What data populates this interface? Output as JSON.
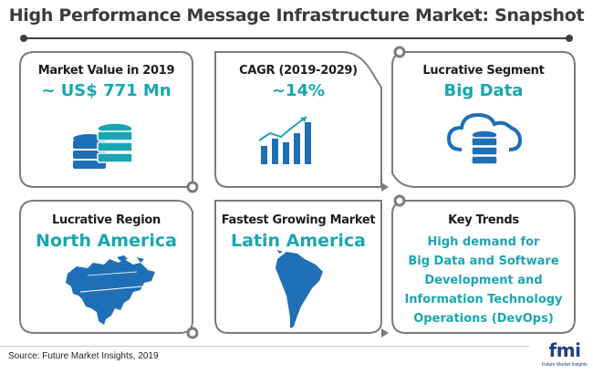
{
  "title": "High Performance Message Infrastructure Market: Snapshot",
  "cards": [
    {
      "label": "Market Value in 2019",
      "value": "~ US$ 771 Mn",
      "icon": "database-icon"
    },
    {
      "label": "CAGR (2019-2029)",
      "value": "~14%",
      "icon": "bar-chart-growth-icon"
    },
    {
      "label": "Lucrative Segment",
      "value": "Big Data",
      "icon": "cloud-database-icon"
    },
    {
      "label": "Lucrative Region",
      "value": "North America",
      "icon": "north-america-map-icon"
    },
    {
      "label": "Fastest Growing Market",
      "value": "Latin America",
      "icon": "south-america-map-icon"
    },
    {
      "label": "Key Trends",
      "trend_lines": [
        "High demand for",
        "Big Data and Software",
        "Development and",
        "Information Technology",
        "Operations (DevOps)"
      ]
    }
  ],
  "source": "Source: Future Market Insights, 2019",
  "logo": {
    "word": "fmi",
    "tagline": "Future Market Insights"
  },
  "colors": {
    "accent": "#19a6b3",
    "icon_blue": "#1f6fb6",
    "frame": "#7b7b7b",
    "logo": "#233d84"
  }
}
